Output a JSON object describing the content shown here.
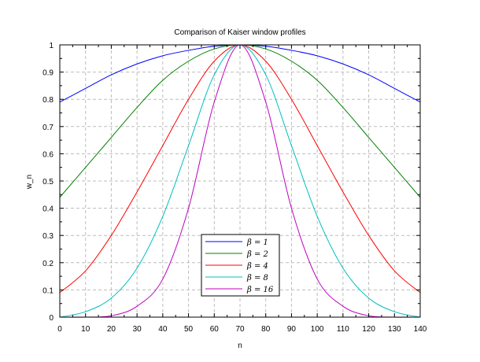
{
  "chart_data": {
    "type": "line",
    "title": "Comparison of Kaiser window profiles",
    "xlabel": "n",
    "ylabel": "w_n",
    "xlim": [
      0,
      140
    ],
    "ylim": [
      0,
      1
    ],
    "x_ticks": [
      0,
      10,
      20,
      30,
      40,
      50,
      60,
      70,
      80,
      90,
      100,
      110,
      120,
      130,
      140
    ],
    "y_ticks": [
      0,
      0.1,
      0.2,
      0.3,
      0.4,
      0.5,
      0.6,
      0.7,
      0.8,
      0.9,
      1
    ],
    "grid": true,
    "legend_position": "bottom-center",
    "x": [
      0,
      10,
      20,
      30,
      40,
      50,
      60,
      70,
      80,
      90,
      100,
      110,
      120,
      130,
      140
    ],
    "series": [
      {
        "name": "β = 1",
        "color": "#0000ff",
        "values": [
          0.79,
          0.84,
          0.89,
          0.93,
          0.96,
          0.98,
          0.995,
          1.0,
          0.995,
          0.98,
          0.96,
          0.93,
          0.89,
          0.84,
          0.79
        ]
      },
      {
        "name": "β = 2",
        "color": "#008000",
        "values": [
          0.44,
          0.55,
          0.66,
          0.77,
          0.87,
          0.94,
          0.985,
          1.0,
          0.985,
          0.94,
          0.87,
          0.77,
          0.66,
          0.55,
          0.44
        ]
      },
      {
        "name": "β = 4",
        "color": "#ff0000",
        "values": [
          0.09,
          0.17,
          0.3,
          0.46,
          0.63,
          0.8,
          0.94,
          1.0,
          0.94,
          0.8,
          0.63,
          0.46,
          0.3,
          0.17,
          0.09
        ]
      },
      {
        "name": "β = 8",
        "color": "#00bfbf",
        "values": [
          0.0,
          0.02,
          0.07,
          0.18,
          0.37,
          0.63,
          0.89,
          1.0,
          0.89,
          0.63,
          0.37,
          0.18,
          0.07,
          0.02,
          0.0
        ]
      },
      {
        "name": "β = 16",
        "color": "#bf00bf",
        "values": [
          0.0,
          0.0,
          0.005,
          0.04,
          0.14,
          0.4,
          0.79,
          1.0,
          0.79,
          0.4,
          0.14,
          0.04,
          0.005,
          0.0,
          0.0
        ]
      }
    ]
  }
}
